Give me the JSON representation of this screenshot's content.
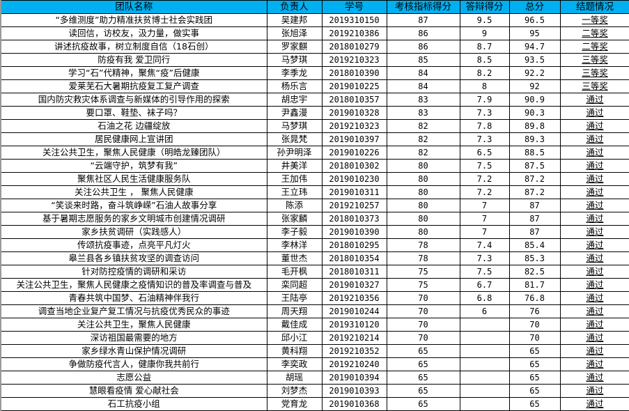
{
  "header_color": "#00B0F0",
  "columns": [
    "团队名称",
    "负责人",
    "学号",
    "考核指标得分",
    "答辩得分",
    "总分",
    "结题情况"
  ],
  "rows": [
    [
      "“多维测度”助力精准扶贫博士社会实践团",
      "吴建邦",
      "2019310150",
      "87",
      "9.5",
      "96.5",
      "一等奖"
    ],
    [
      "读回信，访校友，汲力量，做实事",
      "张旭泽",
      "2019210386",
      "86",
      "9",
      "95",
      "二等奖"
    ],
    [
      "讲述抗疫故事，树立制度自信（18石创）",
      "罗家麒",
      "2018010279",
      "86",
      "8.7",
      "94.7",
      "二等奖"
    ],
    [
      "防疫有我 爱卫同行",
      "马梦琪",
      "2019210323",
      "85",
      "8.5",
      "93.5",
      "三等奖"
    ],
    [
      "学习“石”代精神，聚焦“疫”后健康",
      "李季龙",
      "2018010390",
      "84",
      "8.2",
      "92.2",
      "三等奖"
    ],
    [
      "爱莱芜石大暑期抗疫复工复产调查",
      "杨乐言",
      "2019010225",
      "84",
      "8",
      "92",
      "三等奖"
    ],
    [
      "国内防灾救灾体系调查与新媒体的引导作用的探索",
      "胡忠宇",
      "2018010357",
      "83",
      "7.9",
      "90.9",
      "通过"
    ],
    [
      "要口罩、鞋垫、袜子吗？",
      "尹鑫漫",
      "2019010328",
      "83",
      "7.3",
      "90.3",
      "通过"
    ],
    [
      "石油之花 边疆绽放",
      "马梦琪",
      "2019210323",
      "82",
      "7.8",
      "89.8",
      "通过"
    ],
    [
      "居民健康网上宣讲团",
      "张晁梵",
      "2019010397",
      "82",
      "7.3",
      "89.3",
      "通过"
    ],
    [
      "关注公共卫生，聚焦人民健康（明皓龙臻团队）",
      "孙尹明泽",
      "2019010226",
      "82",
      "6.5",
      "88.5",
      "通过"
    ],
    [
      "“云端守护，筑梦有我”",
      "井美洋",
      "2018010302",
      "80",
      "7.5",
      "87.5",
      "通过"
    ],
    [
      "聚焦社区人民生活健康服务队",
      "王加伟",
      "2019010230",
      "80",
      "7.2",
      "87.2",
      "通过"
    ],
    [
      "关注公共卫生 ， 聚焦人民健康",
      "王立玮",
      "2019010311",
      "80",
      "7.2",
      "87.2",
      "通过"
    ],
    [
      "“笑谈来时路，奋斗筑峥嵘”石油人故事分享",
      "陈添",
      "2019210257",
      "80",
      "7",
      "87",
      "通过"
    ],
    [
      "基于暑期志愿服务的家乡文明城市创建情况调研",
      "张家麟",
      "2018010373",
      "80",
      "7",
      "87",
      "通过"
    ],
    [
      "家乡扶贫调研（实践感人）",
      "李子毅",
      "2019010390",
      "80",
      "7",
      "87",
      "通过"
    ],
    [
      "传颂抗疫事迹，点亮平凡灯火",
      "李林洋",
      "2018010295",
      "78",
      "7.4",
      "85.4",
      "通过"
    ],
    [
      "皋兰县各乡镇扶贫攻坚的调查访问",
      "董世杰",
      "2018010354",
      "78",
      "7.3",
      "85.3",
      "通过"
    ],
    [
      "针对防控疫情的调研和采访",
      "毛开枫",
      "2018010311",
      "75",
      "7.5",
      "82.5",
      "通过"
    ],
    [
      "关注公共卫生，聚焦人民健康之疫情知识的普及率调查与普及",
      "栾同超",
      "2019010327",
      "75",
      "6.7",
      "81.7",
      "通过"
    ],
    [
      "青春共筑中国梦、石油精神伴我行",
      "王陆亭",
      "2019210356",
      "70",
      "6.8",
      "76.8",
      "通过"
    ],
    [
      "调查当地企业复产复工情况与抗疫优秀民众的事迹",
      "周天翔",
      "2019010244",
      "70",
      "6",
      "76",
      "通过"
    ],
    [
      "关注公共卫生，聚焦人民健康",
      "戴佳成",
      "2019310120",
      "70",
      "",
      "70",
      "通过"
    ],
    [
      "深访祖国最需要的地方",
      "邱小江",
      "2019210214",
      "70",
      "",
      "70",
      "通过"
    ],
    [
      "家乡绿水青山保护情况调研",
      "黄科翔",
      "2019210352",
      "65",
      "",
      "65",
      "通过"
    ],
    [
      "争做防疫代言人，健康你我共前行",
      "李奕政",
      "2019210240",
      "65",
      "",
      "65",
      "通过"
    ],
    [
      "志愿公益",
      "胡瑶",
      "2019010394",
      "65",
      "",
      "65",
      "通过"
    ],
    [
      "慧眼看疫情 爱心献社会",
      "刘梦杰",
      "2019010393",
      "65",
      "",
      "65",
      "通过"
    ],
    [
      "石工抗疫小组",
      "党育龙",
      "2019010368",
      "65",
      "",
      "65",
      "通过"
    ]
  ]
}
